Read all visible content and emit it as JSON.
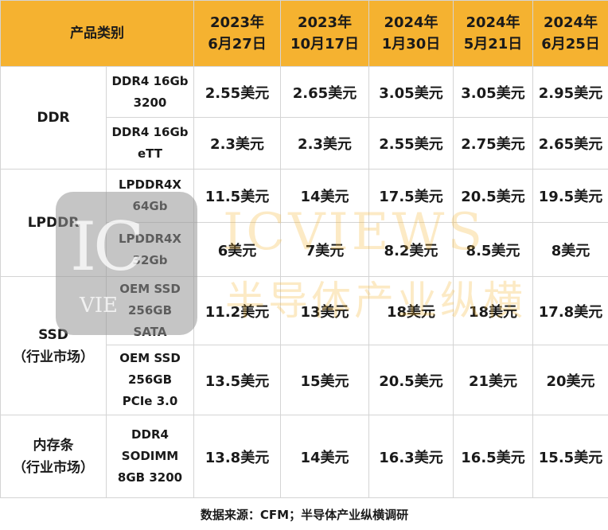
{
  "header": {
    "category": "产品类别",
    "columns": [
      {
        "year": "2023年",
        "date": "6月27日"
      },
      {
        "year": "2023年",
        "date": "10月17日"
      },
      {
        "year": "2024年",
        "date": "1月30日"
      },
      {
        "year": "2024年",
        "date": "5月21日"
      },
      {
        "year": "2024年",
        "date": "6月25日"
      }
    ]
  },
  "groups": {
    "ddr": {
      "label": [
        "DDR"
      ]
    },
    "lpddr": {
      "label": [
        "LPDDR"
      ]
    },
    "ssd": {
      "label": [
        "SSD",
        "（行业市场）"
      ]
    },
    "mem": {
      "label": [
        "内存条",
        "（行业市场）"
      ]
    }
  },
  "rows": [
    {
      "product": [
        "DDR4 16Gb",
        "3200"
      ],
      "prices": [
        "2.55美元",
        "2.65美元",
        "3.05美元",
        "3.05美元",
        "2.95美元"
      ]
    },
    {
      "product": [
        "DDR4 16Gb",
        "eTT"
      ],
      "prices": [
        "2.3美元",
        "2.3美元",
        "2.55美元",
        "2.75美元",
        "2.65美元"
      ]
    },
    {
      "product": [
        "LPDDR4X",
        "64Gb"
      ],
      "prices": [
        "11.5美元",
        "14美元",
        "17.5美元",
        "20.5美元",
        "19.5美元"
      ]
    },
    {
      "product": [
        "LPDDR4X",
        "32Gb"
      ],
      "prices": [
        "6美元",
        "7美元",
        "8.2美元",
        "8.5美元",
        "8美元"
      ]
    },
    {
      "product": [
        "OEM SSD",
        "256GB",
        "SATA"
      ],
      "prices": [
        "11.2美元",
        "13美元",
        "18美元",
        "18美元",
        "17.8美元"
      ]
    },
    {
      "product": [
        "OEM SSD",
        "256GB",
        "PCIe 3.0"
      ],
      "prices": [
        "13.5美元",
        "15美元",
        "20.5美元",
        "21美元",
        "20美元"
      ]
    },
    {
      "product": [
        "DDR4",
        "SODIMM",
        "8GB 3200"
      ],
      "prices": [
        "13.8美元",
        "14美元",
        "16.3美元",
        "16.5美元",
        "15.5美元"
      ]
    }
  ],
  "footer": "数据来源：CFM；半导体产业纵横调研",
  "watermark": {
    "logo_text": "IC",
    "logo_sub": "VIE",
    "line1": "ICVIEWS",
    "line2": "半导体产业纵横"
  },
  "colors": {
    "header_bg": "#f5b230",
    "border": "#d4d4d4"
  }
}
